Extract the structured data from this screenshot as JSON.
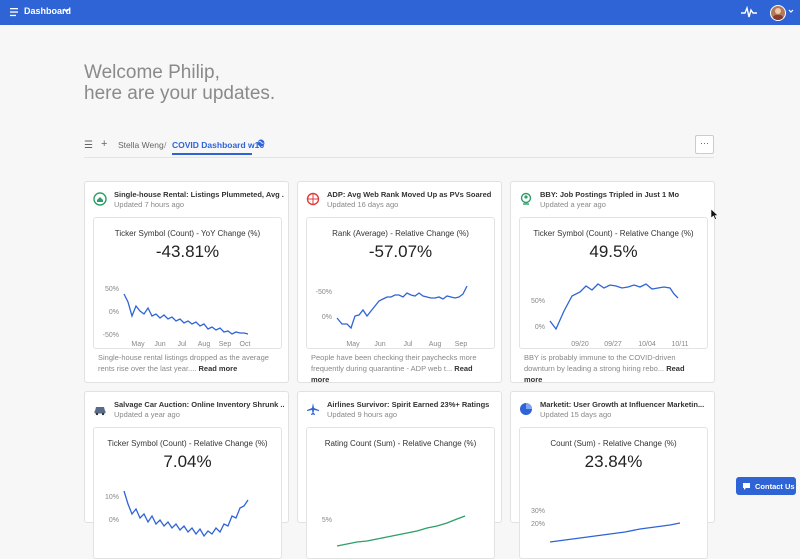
{
  "topbar": {
    "title": "Dashboard",
    "icons": [
      "menu-icon",
      "chevron-down-icon",
      "activity-pulse-icon",
      "user-avatar",
      "chevron-down-icon"
    ]
  },
  "welcome": {
    "line1": "Welcome Philip,",
    "line2": "here are your updates."
  },
  "breadcrumb": {
    "parent": "Stella Weng",
    "separator": "/",
    "current": "COVID Dashboard w16",
    "more_label": "···"
  },
  "colors": {
    "accent": "#2f64d6",
    "green": "#2e9e6a",
    "red": "#e03b3b"
  },
  "cards": [
    {
      "icon": "house-swap-icon",
      "title": "Single-house Rental: Listings Plummeted, Avg ...",
      "updated": "Updated 7 hours ago",
      "metric": "Ticker Symbol (Count) - YoY Change (%)",
      "value": "-43.81%",
      "yticks": [
        "50%",
        "0%",
        "-50%"
      ],
      "xticks": [
        "May",
        "Jun",
        "Jul",
        "Aug",
        "Sep",
        "Oct"
      ],
      "description": "Single-house rental listings dropped as the average rents rise over the last year....",
      "read_more": "Read more"
    },
    {
      "icon": "globe-cursor-icon",
      "title": "ADP: Avg Web Rank Moved Up as PVs Soared",
      "updated": "Updated 16 days ago",
      "metric": "Rank (Average) - Relative Change (%)",
      "value": "-57.07%",
      "yticks": [
        "-50%",
        "0%"
      ],
      "xticks": [
        "May",
        "Jun",
        "Jul",
        "Aug",
        "Sep"
      ],
      "description": "People have been checking their paychecks more frequently during quarantine - ADP web t...",
      "read_more": "Read more"
    },
    {
      "icon": "person-search-icon",
      "title": "BBY: Job Postings Tripled in Just 1 Mo",
      "updated": "Updated a year ago",
      "metric": "Ticker Symbol (Count) - Relative Change (%)",
      "value": "49.5%",
      "yticks": [
        "50%",
        "0%"
      ],
      "xticks": [
        "09/20",
        "09/27",
        "10/04",
        "10/11"
      ],
      "description": "BBY is probably immune to the COVID-driven downturn by leading a strong hiring rebo...",
      "read_more": "Read more"
    },
    {
      "icon": "car-icon",
      "title": "Salvage Car Auction: Online Inventory Shrunk ...",
      "updated": "Updated a year ago",
      "metric": "Ticker Symbol (Count) - Relative Change (%)",
      "value": "7.04%",
      "yticks": [
        "10%",
        "0%"
      ],
      "xticks": []
    },
    {
      "icon": "airplane-icon",
      "title": "Airlines Survivor: Spirit Earned 23%+ Ratings",
      "updated": "Updated 9 hours ago",
      "metric": "Rating Count (Sum) - Relative Change (%)",
      "value": "",
      "yticks": [
        "5%"
      ],
      "xticks": []
    },
    {
      "icon": "pie-chart-icon",
      "title": "Marketit: User Growth at Influencer Marketin...",
      "updated": "Updated 15 days ago",
      "metric": "Count (Sum) - Relative Change (%)",
      "value": "23.84%",
      "yticks": [
        "30%",
        "20%"
      ],
      "xticks": []
    }
  ],
  "contact": {
    "label": "Contact Us"
  }
}
